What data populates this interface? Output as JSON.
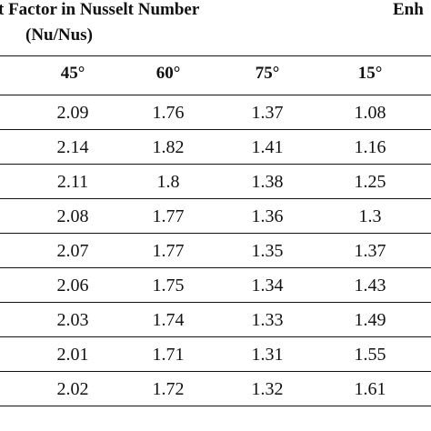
{
  "header": {
    "line1": "t Factor in Nusselt Number",
    "line2": "(Nu/Nus)",
    "right": "Enh"
  },
  "angles": [
    "45°",
    "60°",
    "75°",
    "15°"
  ],
  "rows": [
    [
      "2.09",
      "1.76",
      "1.37",
      "1.08"
    ],
    [
      "2.14",
      "1.82",
      "1.41",
      "1.16"
    ],
    [
      "2.11",
      "1.8",
      "1.38",
      "1.25"
    ],
    [
      "2.08",
      "1.77",
      "1.36",
      "1.3"
    ],
    [
      "2.07",
      "1.77",
      "1.35",
      "1.37"
    ],
    [
      "2.06",
      "1.75",
      "1.34",
      "1.43"
    ],
    [
      "2.03",
      "1.74",
      "1.33",
      "1.49"
    ],
    [
      "2.01",
      "1.71",
      "1.31",
      "1.55"
    ],
    [
      "2.02",
      "1.72",
      "1.32",
      "1.61"
    ]
  ]
}
